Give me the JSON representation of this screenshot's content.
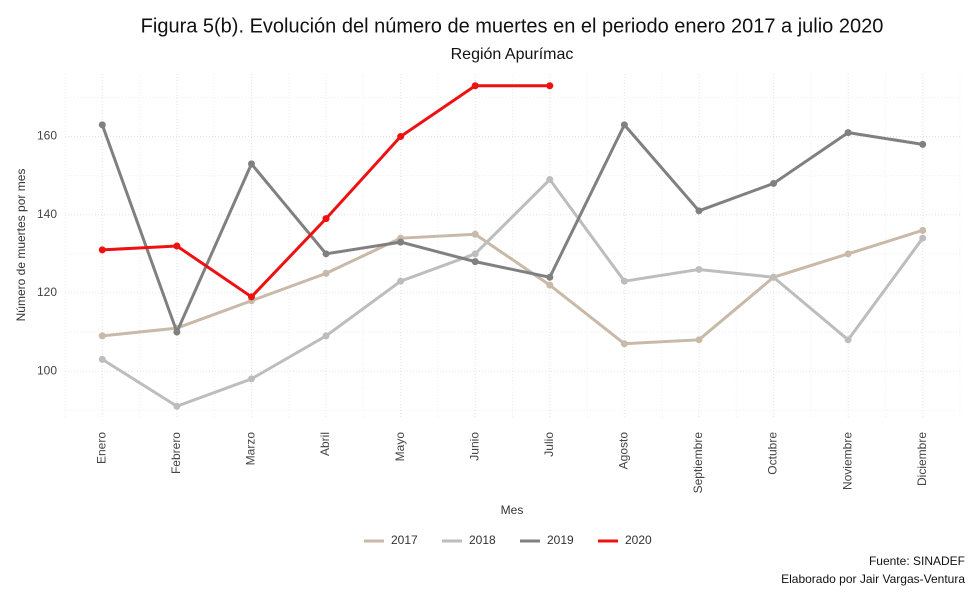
{
  "chart_data": {
    "type": "line",
    "title": "Figura 5(b). Evolución del número de muertes en el periodo enero 2017 a julio 2020",
    "subtitle": "Región Apurímac",
    "x_label": "Mes",
    "y_label": "Número de muertes por mes",
    "caption": [
      "Fuente: SINADEF",
      "Elaborado por Jair Vargas-Ventura"
    ],
    "categories": [
      "Enero",
      "Febrero",
      "Marzo",
      "Abril",
      "Mayo",
      "Junio",
      "Julio",
      "Agosto",
      "Septiembre",
      "Octubre",
      "Noviembre",
      "Diciembre"
    ],
    "series": [
      {
        "name": "2017",
        "color": "#c9b9a9",
        "values": [
          109,
          111,
          118,
          125,
          134,
          135,
          122,
          107,
          108,
          124,
          130,
          136
        ]
      },
      {
        "name": "2018",
        "color": "#bdbdbd",
        "values": [
          103,
          91,
          98,
          109,
          123,
          130,
          149,
          123,
          126,
          124,
          108,
          134
        ]
      },
      {
        "name": "2019",
        "color": "#808080",
        "values": [
          163,
          110,
          153,
          130,
          133,
          128,
          124,
          163,
          141,
          148,
          161,
          158
        ]
      },
      {
        "name": "2020",
        "color": "#ee1111",
        "values": [
          131,
          132,
          119,
          139,
          160,
          173,
          173,
          null,
          null,
          null,
          null,
          null
        ]
      }
    ],
    "ylim": [
      88,
      176
    ],
    "yticks": [
      100,
      120,
      140,
      160
    ],
    "grid": true,
    "legend": "bottom"
  }
}
